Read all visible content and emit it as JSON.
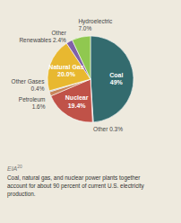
{
  "chart_data": {
    "type": "pie",
    "categories": [
      "Coal\n49%",
      "Other 0.3%",
      "Nuclear\n19.4%",
      "Petroleum\n1.6%",
      "Other Gases\n0.4%",
      "Natural Gas\n20.0%",
      "Other\nRenewables 2.4%",
      "Hydroelectric\n7.0%"
    ],
    "values": [
      49.0,
      0.3,
      19.4,
      1.6,
      0.4,
      20.0,
      2.4,
      7.0
    ],
    "colors": [
      "#336b6e",
      "#b8b8b8",
      "#c05248",
      "#c8855a",
      "#9aaac0",
      "#e8b830",
      "#8060a8",
      "#90c850"
    ],
    "annotations": [
      "EIA",
      "20",
      "Coal, natural gas, and nuclear power plants together\naccount for about 90 percent of current U.S. electricity\nproduction."
    ]
  }
}
